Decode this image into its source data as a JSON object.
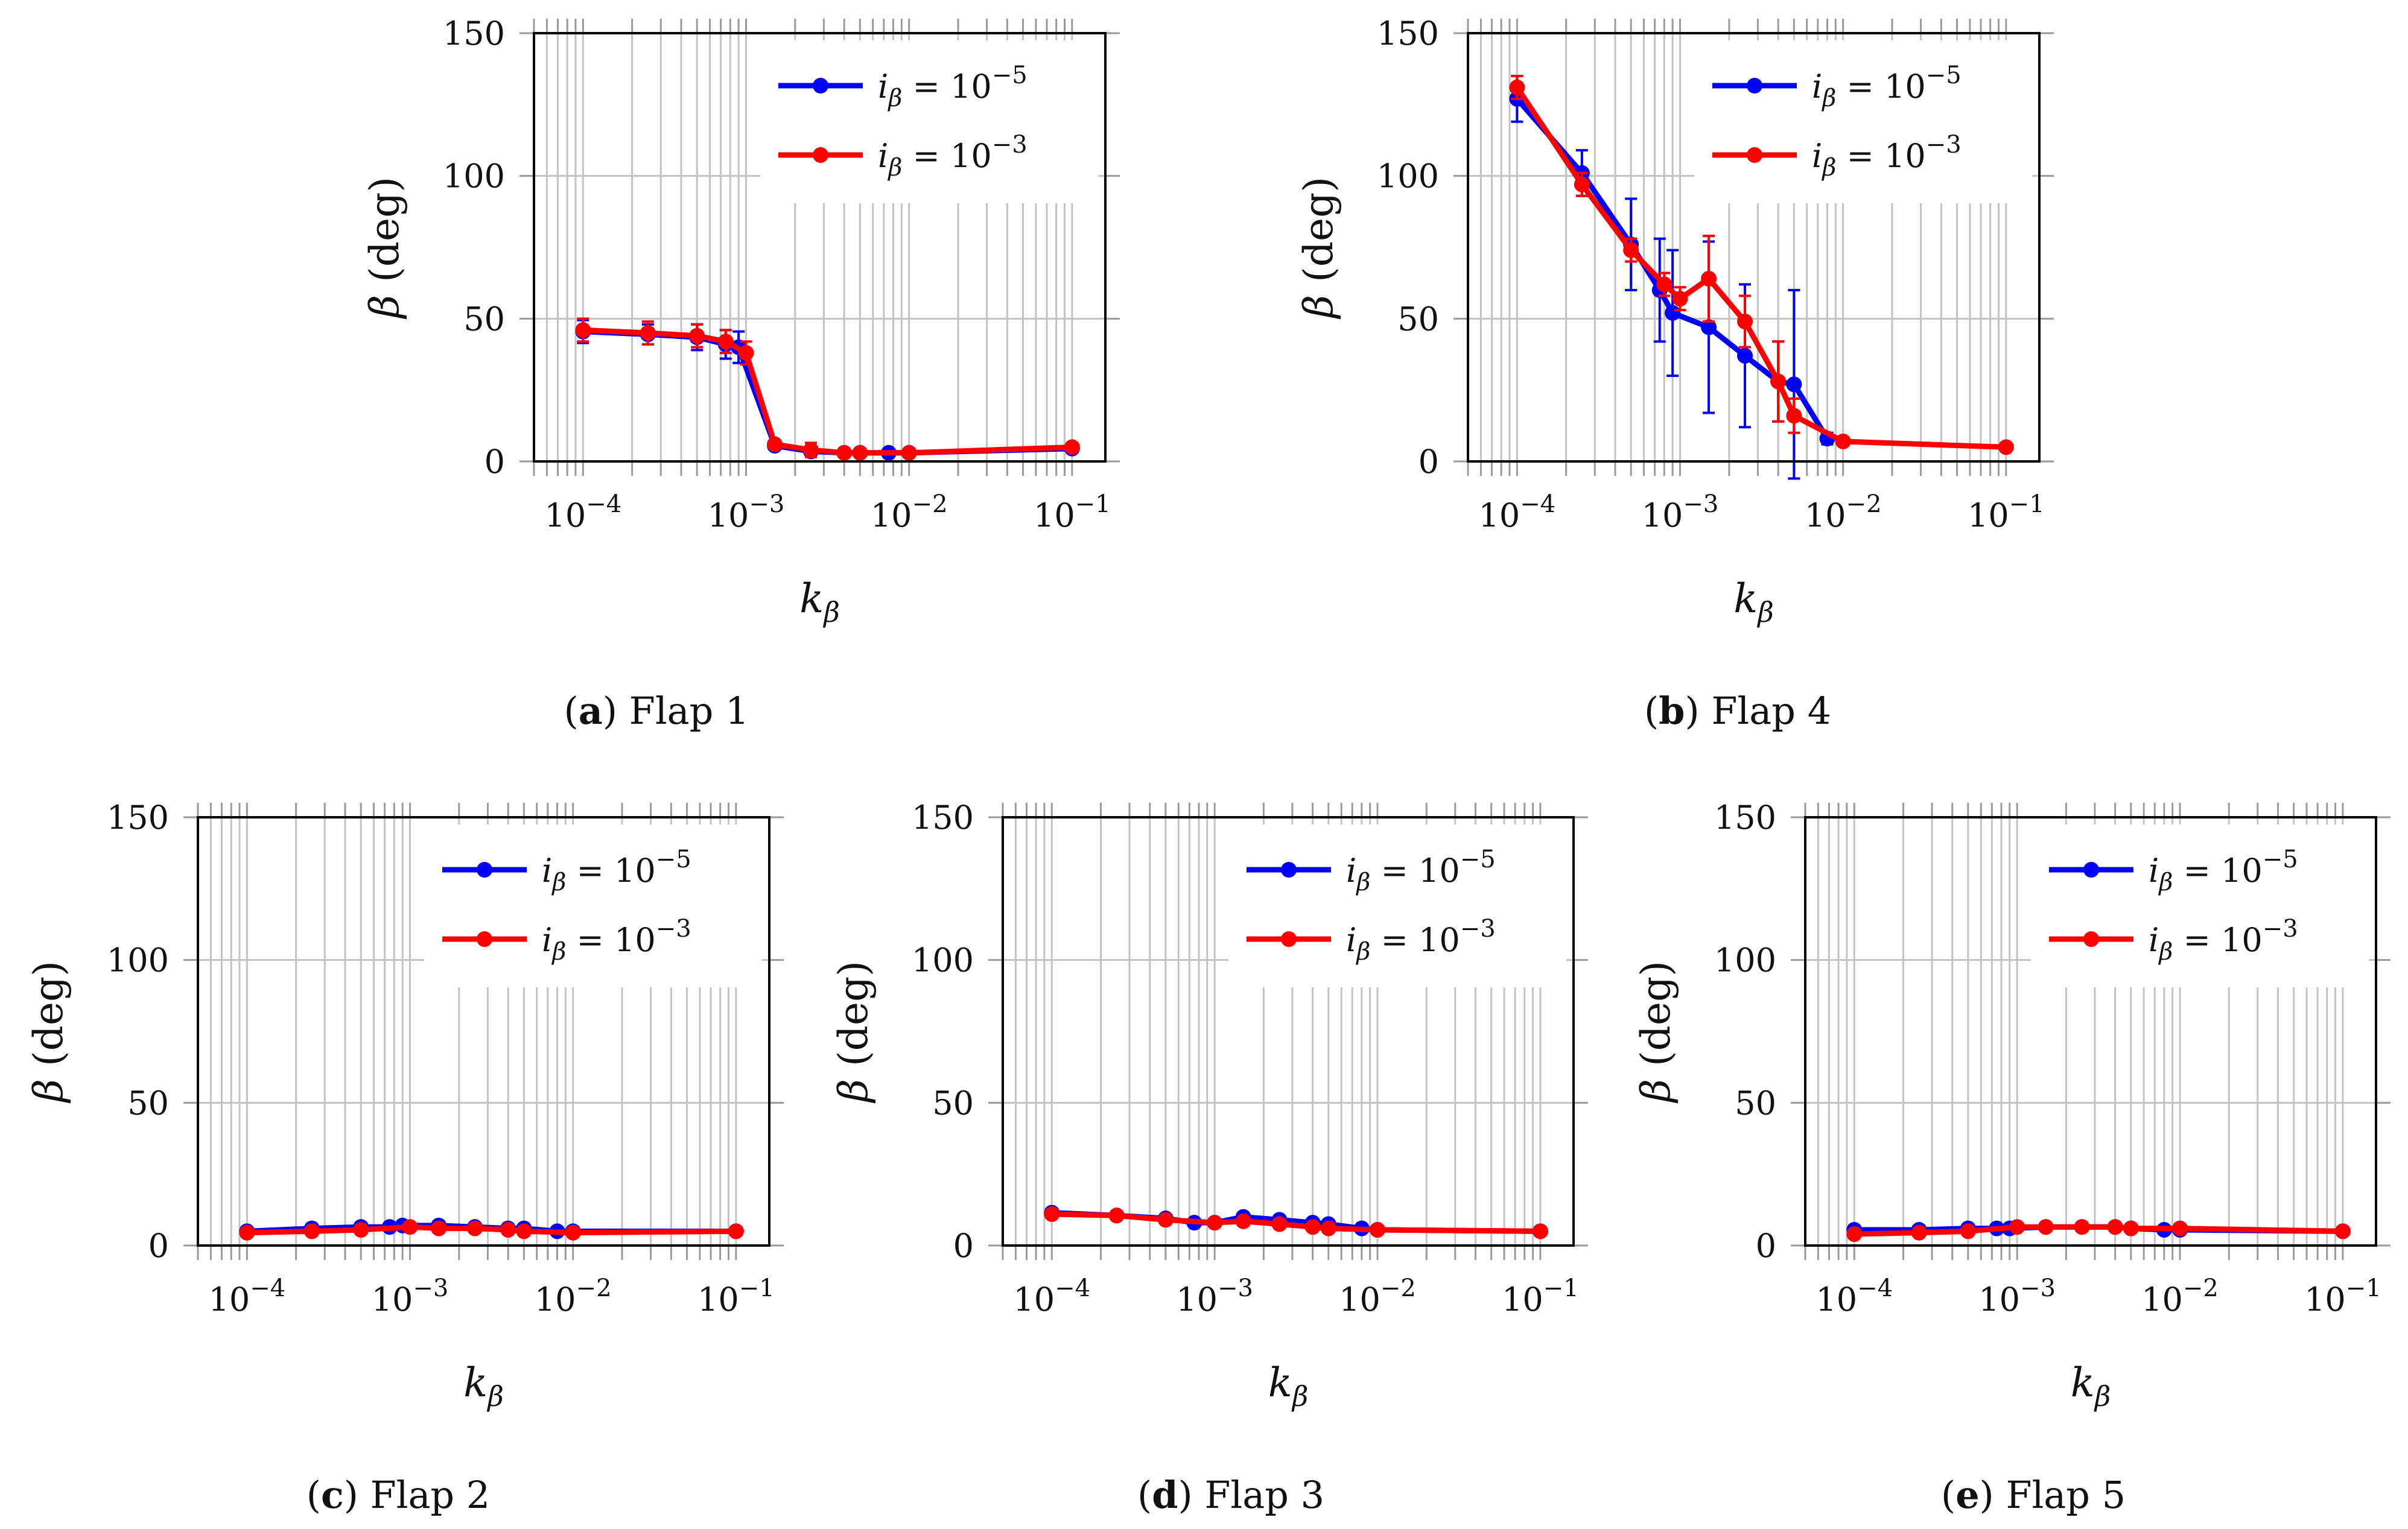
{
  "figure": {
    "panels": [
      {
        "letter": "a",
        "title": "Flap 1"
      },
      {
        "letter": "b",
        "title": "Flap 4"
      },
      {
        "letter": "c",
        "title": "Flap 2"
      },
      {
        "letter": "d",
        "title": "Flap 3"
      },
      {
        "letter": "e",
        "title": "Flap 5"
      }
    ]
  },
  "chart_data": [
    {
      "type": "line",
      "panel": "a",
      "caption": "(a) Flap 1",
      "title": "",
      "xlabel": "k_β",
      "ylabel": "β (deg)",
      "xscale": "log",
      "xlim": [
        5e-05,
        0.16
      ],
      "ylim": [
        0,
        150
      ],
      "yticks": [
        0,
        50,
        100,
        150
      ],
      "xticks": [
        0.0001,
        0.001,
        0.01,
        0.1
      ],
      "xtick_labels": [
        "10−4",
        "10−3",
        "10−2",
        "10−1"
      ],
      "grid": true,
      "legend_position": "top-right",
      "series": [
        {
          "name": "iβ = 10−5",
          "color": "#0000ff",
          "x": [
            0.0001,
            0.00025,
            0.0005,
            0.00075,
            0.0009,
            0.0015,
            0.0025,
            0.004,
            0.005,
            0.0075,
            0.01,
            0.1
          ],
          "y": [
            45.5,
            44.5,
            43.5,
            41,
            40,
            5.5,
            3.5,
            3,
            3,
            3,
            3,
            4.5
          ],
          "err": [
            4,
            3.5,
            4.5,
            5,
            5.5,
            1,
            1,
            0.5,
            0.5,
            0.5,
            0.5,
            0.5
          ]
        },
        {
          "name": "iβ = 10−3",
          "color": "#ff0000",
          "x": [
            0.0001,
            0.00025,
            0.0005,
            0.00075,
            0.001,
            0.0015,
            0.0025,
            0.004,
            0.005,
            0.01,
            0.1
          ],
          "y": [
            46,
            45,
            44,
            42,
            38,
            6,
            4,
            3,
            3,
            3,
            5
          ],
          "err": [
            4,
            4,
            4,
            4,
            4,
            1,
            2.5,
            0.5,
            0.5,
            0.5,
            0.5
          ]
        }
      ]
    },
    {
      "type": "line",
      "panel": "b",
      "caption": "(b) Flap 4",
      "title": "",
      "xlabel": "k_β",
      "ylabel": "β (deg)",
      "xscale": "log",
      "xlim": [
        5e-05,
        0.16
      ],
      "ylim": [
        0,
        150
      ],
      "yticks": [
        0,
        50,
        100,
        150
      ],
      "xticks": [
        0.0001,
        0.001,
        0.01,
        0.1
      ],
      "xtick_labels": [
        "10−4",
        "10−3",
        "10−2",
        "10−1"
      ],
      "grid": true,
      "legend_position": "top-right",
      "series": [
        {
          "name": "iβ = 10−5",
          "color": "#0000ff",
          "x": [
            0.0001,
            0.00025,
            0.0005,
            0.00075,
            0.0009,
            0.0015,
            0.0025,
            0.004,
            0.005,
            0.008
          ],
          "y": [
            127,
            101,
            76,
            60,
            52,
            47,
            37,
            28,
            27,
            8
          ],
          "err": [
            8,
            8,
            16,
            18,
            22,
            30,
            25,
            14,
            33,
            2
          ]
        },
        {
          "name": "iβ = 10−3",
          "color": "#ff0000",
          "x": [
            0.0001,
            0.00025,
            0.0005,
            0.0008,
            0.001,
            0.0015,
            0.0025,
            0.004,
            0.005,
            0.01,
            0.1
          ],
          "y": [
            131,
            97,
            74,
            62,
            57,
            64,
            49,
            28,
            16,
            7,
            5
          ],
          "err": [
            4,
            4,
            4,
            4,
            4,
            15,
            9,
            14,
            6,
            1,
            1
          ]
        }
      ]
    },
    {
      "type": "line",
      "panel": "c",
      "caption": "(c) Flap 2",
      "title": "",
      "xlabel": "k_β",
      "ylabel": "β (deg)",
      "xscale": "log",
      "xlim": [
        5e-05,
        0.16
      ],
      "ylim": [
        0,
        150
      ],
      "yticks": [
        0,
        50,
        100,
        150
      ],
      "xticks": [
        0.0001,
        0.001,
        0.01,
        0.1
      ],
      "xtick_labels": [
        "10−4",
        "10−3",
        "10−2",
        "10−1"
      ],
      "grid": true,
      "legend_position": "top-right",
      "series": [
        {
          "name": "iβ = 10−5",
          "color": "#0000ff",
          "x": [
            0.0001,
            0.00025,
            0.0005,
            0.00075,
            0.0009,
            0.0015,
            0.0025,
            0.004,
            0.005,
            0.008,
            0.01,
            0.1
          ],
          "y": [
            5,
            6,
            6.5,
            6.5,
            7,
            7,
            6.5,
            6,
            6,
            5,
            5,
            5
          ],
          "err": [
            0.5,
            0.5,
            0.5,
            0.5,
            0.5,
            0.5,
            0.5,
            0.5,
            0.5,
            0.5,
            0.5,
            0.5
          ]
        },
        {
          "name": "iβ = 10−3",
          "color": "#ff0000",
          "x": [
            0.0001,
            0.00025,
            0.0005,
            0.001,
            0.0015,
            0.0025,
            0.004,
            0.005,
            0.01,
            0.1
          ],
          "y": [
            4.5,
            5,
            5.5,
            6.5,
            6,
            6,
            5.5,
            5,
            4.5,
            5
          ],
          "err": [
            0.5,
            0.5,
            0.5,
            0.5,
            0.5,
            0.5,
            0.5,
            0.5,
            0.5,
            0.5
          ]
        }
      ]
    },
    {
      "type": "line",
      "panel": "d",
      "caption": "(d) Flap 3",
      "title": "",
      "xlabel": "k_β",
      "ylabel": "β (deg)",
      "xscale": "log",
      "xlim": [
        5e-05,
        0.16
      ],
      "ylim": [
        0,
        150
      ],
      "yticks": [
        0,
        50,
        100,
        150
      ],
      "xticks": [
        0.0001,
        0.001,
        0.01,
        0.1
      ],
      "xtick_labels": [
        "10−4",
        "10−3",
        "10−2",
        "10−1"
      ],
      "grid": true,
      "legend_position": "top-right",
      "series": [
        {
          "name": "iβ = 10−5",
          "color": "#0000ff",
          "x": [
            0.0001,
            0.00025,
            0.0005,
            0.00075,
            0.001,
            0.0015,
            0.0025,
            0.004,
            0.005,
            0.008,
            0.01,
            0.1
          ],
          "y": [
            11.5,
            10.5,
            9.5,
            8,
            8,
            10,
            9,
            8,
            7.5,
            6,
            5.5,
            5
          ],
          "err": [
            0.5,
            0.5,
            0.5,
            0.5,
            0.5,
            0.5,
            0.5,
            0.5,
            0.5,
            0.5,
            0.5,
            0.5
          ]
        },
        {
          "name": "iβ = 10−3",
          "color": "#ff0000",
          "x": [
            0.0001,
            0.00025,
            0.0005,
            0.001,
            0.0015,
            0.0025,
            0.004,
            0.005,
            0.01,
            0.1
          ],
          "y": [
            11,
            10.5,
            9,
            8,
            8.5,
            7.5,
            6.5,
            6,
            5.5,
            5
          ],
          "err": [
            0.5,
            0.5,
            0.5,
            0.5,
            0.5,
            0.5,
            0.5,
            0.5,
            0.5,
            0.5
          ]
        }
      ]
    },
    {
      "type": "line",
      "panel": "e",
      "caption": "(e) Flap 5",
      "title": "",
      "xlabel": "k_β",
      "ylabel": "β (deg)",
      "xscale": "log",
      "xlim": [
        5e-05,
        0.16
      ],
      "ylim": [
        0,
        150
      ],
      "yticks": [
        0,
        50,
        100,
        150
      ],
      "xticks": [
        0.0001,
        0.001,
        0.01,
        0.1
      ],
      "xtick_labels": [
        "10−4",
        "10−3",
        "10−2",
        "10−1"
      ],
      "grid": true,
      "legend_position": "top-right",
      "series": [
        {
          "name": "iβ = 10−5",
          "color": "#0000ff",
          "x": [
            0.0001,
            0.00025,
            0.0005,
            0.00075,
            0.0009,
            0.0015,
            0.0025,
            0.004,
            0.005,
            0.008,
            0.01,
            0.1
          ],
          "y": [
            5.5,
            5.5,
            6,
            6,
            6,
            6.5,
            6.5,
            6.5,
            6,
            5.5,
            5.5,
            5
          ],
          "err": [
            0.5,
            0.5,
            0.5,
            0.5,
            0.5,
            0.5,
            0.5,
            0.5,
            0.5,
            0.5,
            0.5,
            0.5
          ]
        },
        {
          "name": "iβ = 10−3",
          "color": "#ff0000",
          "x": [
            0.0001,
            0.00025,
            0.0005,
            0.001,
            0.0015,
            0.0025,
            0.004,
            0.005,
            0.01,
            0.1
          ],
          "y": [
            4,
            4.5,
            5,
            6.5,
            6.5,
            6.5,
            6.5,
            6,
            6,
            5
          ],
          "err": [
            0.5,
            0.5,
            0.5,
            0.5,
            0.5,
            0.5,
            0.5,
            0.5,
            0.5,
            0.5
          ]
        }
      ]
    }
  ]
}
